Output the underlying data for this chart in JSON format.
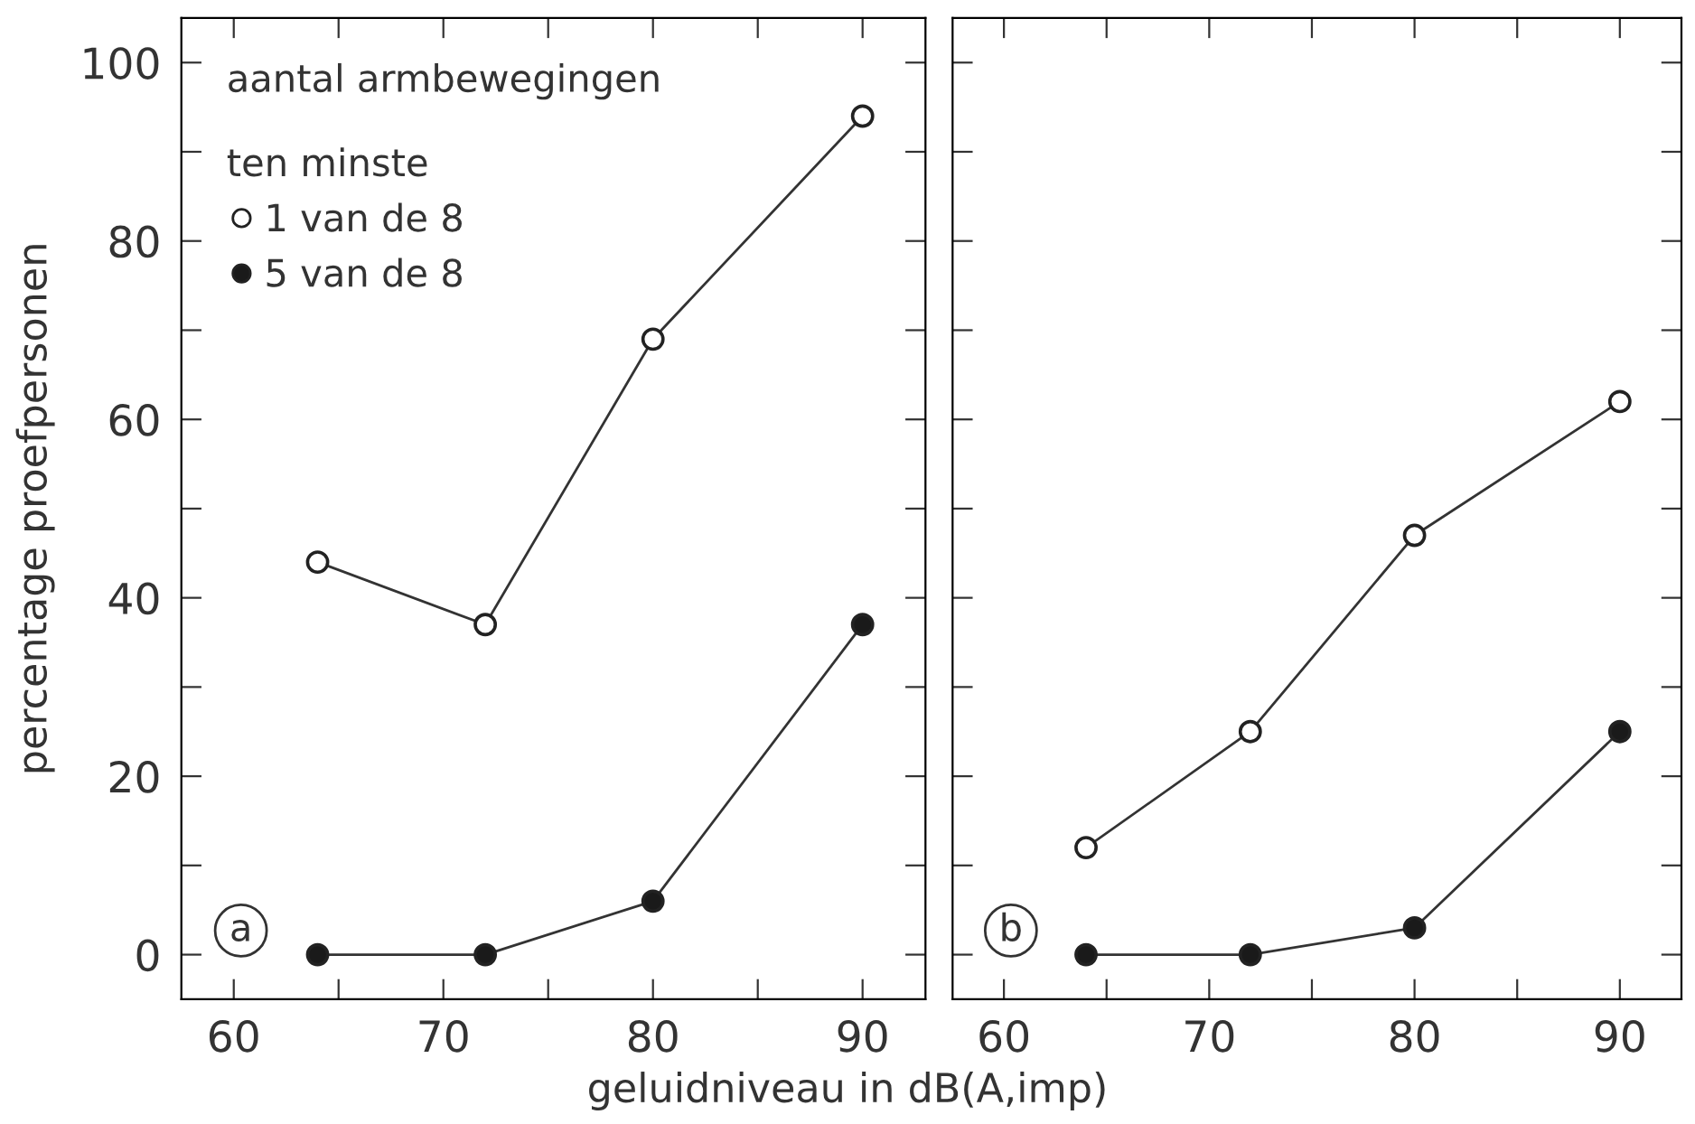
{
  "chart_data": [
    {
      "type": "line",
      "ylabel": "percentage proefpersonen",
      "xlabel": "geluidniveau in dB(A,imp)",
      "legend_title": "aantal armbewegingen\n\nten minste",
      "legend": "top left",
      "marker": "circle",
      "line_style": "solid",
      "grid": false,
      "x": [
        64,
        72,
        80,
        90
      ],
      "series": [
        {
          "name": "1 van de 8",
          "color": "#ffffff",
          "values": [
            44,
            37,
            69,
            94
          ]
        },
        {
          "name": "5 van de 8",
          "color": "#1a1a1a",
          "values": [
            0,
            0,
            6,
            37
          ]
        }
      ],
      "xlim": [
        57.5,
        93
      ],
      "xticks": [
        60,
        {
          "value": 65,
          "label": null
        },
        70,
        {
          "value": 75,
          "label": null
        },
        80,
        {
          "value": 85,
          "label": null
        },
        90
      ],
      "ylim": [
        -5,
        105
      ],
      "yticks": [
        0,
        {
          "value": 10,
          "label": null
        },
        20,
        {
          "value": 30,
          "label": null
        },
        40,
        {
          "value": 50,
          "label": null
        },
        60,
        {
          "value": 70,
          "label": null
        },
        80,
        {
          "value": 90,
          "label": null
        },
        100
      ],
      "annotations": [
        "a"
      ]
    },
    {
      "type": "line",
      "marker": "circle",
      "line_style": "solid",
      "grid": false,
      "tick_labels": "x",
      "x": [
        64,
        72,
        80,
        90
      ],
      "series": [
        {
          "color": "#ffffff",
          "values": [
            12,
            25,
            47,
            62
          ]
        },
        {
          "color": "#1a1a1a",
          "values": [
            0,
            0,
            3,
            25
          ]
        }
      ],
      "xlim": [
        57.5,
        93
      ],
      "xticks": [
        60,
        {
          "value": 65,
          "label": null
        },
        70,
        {
          "value": 75,
          "label": null
        },
        80,
        {
          "value": 85,
          "label": null
        },
        90
      ],
      "ylim": [
        -5,
        105
      ],
      "yticks": [
        0,
        {
          "value": 10,
          "label": null
        },
        20,
        {
          "value": 30,
          "label": null
        },
        40,
        {
          "value": 50,
          "label": null
        },
        60,
        {
          "value": 70,
          "label": null
        },
        80,
        {
          "value": 90,
          "label": null
        },
        100
      ],
      "annotations": [
        "b"
      ]
    }
  ]
}
